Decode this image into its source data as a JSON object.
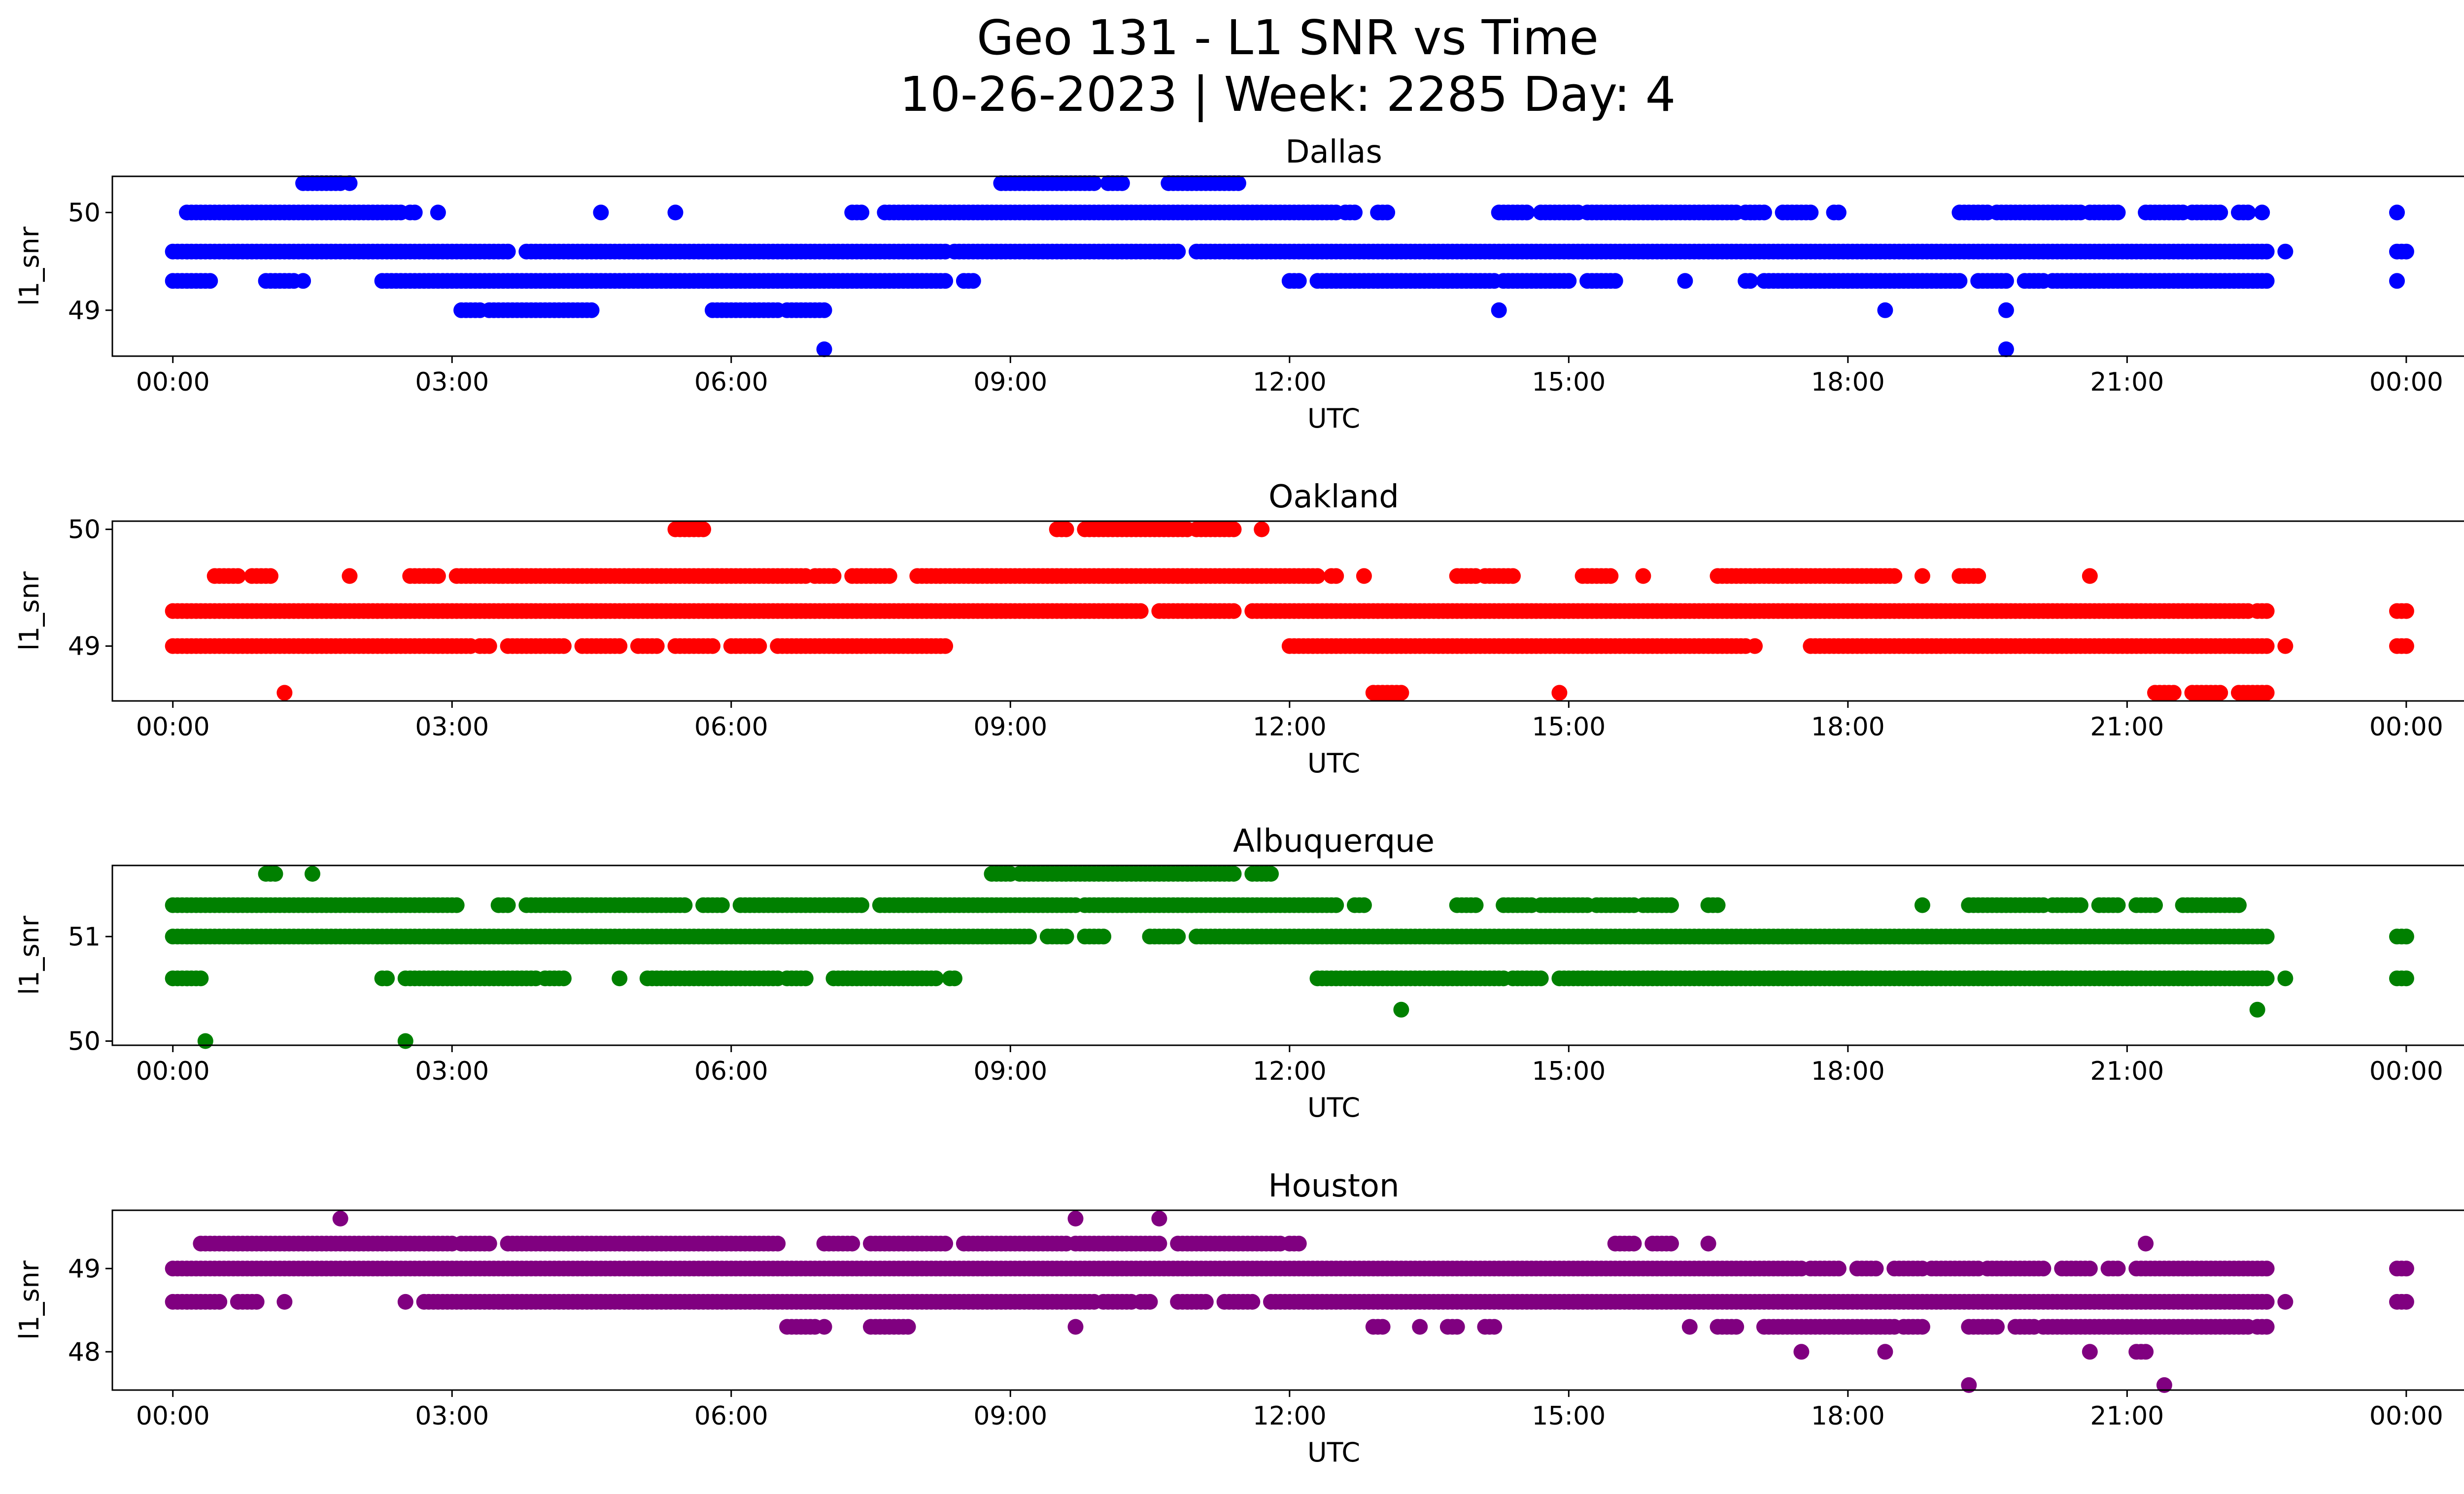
{
  "figure": {
    "title_line1": "Geo 131 - L1 SNR vs Time",
    "title_line2": "10-26-2023 | Week: 2285 Day: 4"
  },
  "chart_data": [
    {
      "type": "scatter",
      "title": "Dallas",
      "xlabel": "UTC",
      "ylabel": "l1_snr",
      "color": "#0000ff",
      "xlim": [
        -0.65,
        25.6
      ],
      "ylim": [
        48.53,
        50.37
      ],
      "xticks": [
        0,
        3,
        6,
        9,
        12,
        15,
        18,
        21,
        24
      ],
      "xtick_labels": [
        "00:00",
        "03:00",
        "06:00",
        "09:00",
        "12:00",
        "15:00",
        "18:00",
        "21:00",
        "00:00"
      ],
      "yticks": [
        49,
        50
      ],
      "series": [
        {
          "y": 50.3,
          "runs": [
            [
              1.4,
              1.8
            ],
            [
              1.9,
              1.9
            ],
            [
              8.9,
              9.9
            ],
            [
              10.05,
              10.2
            ],
            [
              10.7,
              11.45
            ]
          ]
        },
        {
          "y": 50.0,
          "runs": [
            [
              0.15,
              2.45
            ],
            [
              2.55,
              2.6
            ],
            [
              2.85,
              2.85
            ],
            [
              4.6,
              4.6
            ],
            [
              5.4,
              5.4
            ],
            [
              7.3,
              7.4
            ],
            [
              7.65,
              12.5
            ],
            [
              12.6,
              12.7
            ],
            [
              12.95,
              13.05
            ],
            [
              14.25,
              14.55
            ],
            [
              14.7,
              15.1
            ],
            [
              15.2,
              16.8
            ],
            [
              16.9,
              17.1
            ],
            [
              17.3,
              17.6
            ],
            [
              17.85,
              17.9
            ],
            [
              19.2,
              19.5
            ],
            [
              19.6,
              20.5
            ],
            [
              20.6,
              20.9
            ],
            [
              21.2,
              21.6
            ],
            [
              21.7,
              22.0
            ],
            [
              22.2,
              22.3
            ],
            [
              22.45,
              22.45
            ],
            [
              23.9,
              23.9
            ]
          ]
        },
        {
          "y": 49.6,
          "runs": [
            [
              0.0,
              3.6
            ],
            [
              3.8,
              8.3
            ],
            [
              8.4,
              10.8
            ],
            [
              11.0,
              22.5
            ],
            [
              22.7,
              22.7
            ],
            [
              23.9,
              24.0
            ]
          ]
        },
        {
          "y": 49.3,
          "runs": [
            [
              0.0,
              0.4
            ],
            [
              1.0,
              1.3
            ],
            [
              1.4,
              1.4
            ],
            [
              2.25,
              8.3
            ],
            [
              8.5,
              8.6
            ],
            [
              12.0,
              12.1
            ],
            [
              12.3,
              14.2
            ],
            [
              14.3,
              15.0
            ],
            [
              15.2,
              15.5
            ],
            [
              16.25,
              16.25
            ],
            [
              16.9,
              16.95
            ],
            [
              17.1,
              19.2
            ],
            [
              19.4,
              19.7
            ],
            [
              19.9,
              20.1
            ],
            [
              20.2,
              22.5
            ],
            [
              23.9,
              23.9
            ]
          ]
        },
        {
          "y": 49.0,
          "runs": [
            [
              3.1,
              3.3
            ],
            [
              3.4,
              4.5
            ],
            [
              5.8,
              6.5
            ],
            [
              6.6,
              7.0
            ],
            [
              14.25,
              14.25
            ],
            [
              18.4,
              18.4
            ],
            [
              19.7,
              19.7
            ]
          ]
        },
        {
          "y": 48.6,
          "runs": [
            [
              7.0,
              7.0
            ],
            [
              19.7,
              19.7
            ]
          ]
        }
      ]
    },
    {
      "type": "scatter",
      "title": "Oakland",
      "xlabel": "UTC",
      "ylabel": "l1_snr",
      "color": "#ff0000",
      "xlim": [
        -0.65,
        25.6
      ],
      "ylim": [
        48.53,
        50.07
      ],
      "xticks": [
        0,
        3,
        6,
        9,
        12,
        15,
        18,
        21,
        24
      ],
      "xtick_labels": [
        "00:00",
        "03:00",
        "06:00",
        "09:00",
        "12:00",
        "15:00",
        "18:00",
        "21:00",
        "00:00"
      ],
      "yticks": [
        49,
        50
      ],
      "series": [
        {
          "y": 50.0,
          "runs": [
            [
              5.4,
              5.7
            ],
            [
              9.5,
              9.6
            ],
            [
              9.8,
              10.9
            ],
            [
              11.0,
              11.4
            ],
            [
              11.7,
              11.7
            ]
          ]
        },
        {
          "y": 49.6,
          "runs": [
            [
              0.45,
              0.7
            ],
            [
              0.85,
              1.05
            ],
            [
              1.9,
              1.9
            ],
            [
              2.55,
              2.85
            ],
            [
              3.05,
              6.8
            ],
            [
              6.9,
              7.1
            ],
            [
              7.3,
              7.7
            ],
            [
              8.0,
              12.3
            ],
            [
              12.45,
              12.5
            ],
            [
              12.8,
              12.8
            ],
            [
              13.8,
              14.0
            ],
            [
              14.1,
              14.4
            ],
            [
              15.15,
              15.45
            ],
            [
              15.8,
              15.8
            ],
            [
              16.6,
              17.75
            ],
            [
              17.8,
              18.5
            ],
            [
              18.8,
              18.8
            ],
            [
              19.2,
              19.4
            ],
            [
              20.6,
              20.6
            ]
          ]
        },
        {
          "y": 49.3,
          "runs": [
            [
              0.0,
              10.4
            ],
            [
              10.6,
              11.4
            ],
            [
              11.6,
              22.3
            ],
            [
              22.4,
              22.5
            ],
            [
              23.9,
              24.0
            ]
          ]
        },
        {
          "y": 49.0,
          "runs": [
            [
              0.0,
              3.2
            ],
            [
              3.3,
              3.4
            ],
            [
              3.6,
              4.2
            ],
            [
              4.4,
              4.8
            ],
            [
              5.0,
              5.2
            ],
            [
              5.4,
              5.8
            ],
            [
              6.0,
              6.3
            ],
            [
              6.5,
              8.3
            ],
            [
              12.0,
              16.9
            ],
            [
              17.0,
              17.0
            ],
            [
              17.6,
              22.5
            ],
            [
              22.7,
              22.7
            ],
            [
              23.9,
              24.0
            ]
          ]
        },
        {
          "y": 48.6,
          "runs": [
            [
              1.2,
              1.2
            ],
            [
              12.9,
              13.2
            ],
            [
              14.9,
              14.9
            ],
            [
              21.3,
              21.5
            ],
            [
              21.7,
              22.0
            ],
            [
              22.2,
              22.5
            ]
          ]
        }
      ]
    },
    {
      "type": "scatter",
      "title": "Albuquerque",
      "xlabel": "UTC",
      "ylabel": "l1_snr",
      "color": "#008000",
      "xlim": [
        -0.65,
        25.6
      ],
      "ylim": [
        49.96,
        51.68
      ],
      "xticks": [
        0,
        3,
        6,
        9,
        12,
        15,
        18,
        21,
        24
      ],
      "xtick_labels": [
        "00:00",
        "03:00",
        "06:00",
        "09:00",
        "12:00",
        "15:00",
        "18:00",
        "21:00",
        "00:00"
      ],
      "yticks": [
        50,
        51
      ],
      "series": [
        {
          "y": 51.6,
          "runs": [
            [
              1.0,
              1.1
            ],
            [
              1.5,
              1.5
            ],
            [
              8.8,
              9.0
            ],
            [
              9.1,
              11.4
            ],
            [
              11.6,
              11.8
            ]
          ]
        },
        {
          "y": 51.3,
          "runs": [
            [
              0.0,
              3.05
            ],
            [
              3.5,
              3.6
            ],
            [
              3.8,
              5.5
            ],
            [
              5.7,
              5.9
            ],
            [
              6.1,
              7.4
            ],
            [
              7.6,
              9.7
            ],
            [
              9.8,
              12.5
            ],
            [
              12.7,
              12.8
            ],
            [
              13.8,
              14.0
            ],
            [
              14.3,
              14.6
            ],
            [
              14.7,
              15.2
            ],
            [
              15.3,
              15.7
            ],
            [
              15.8,
              16.1
            ],
            [
              16.5,
              16.6
            ],
            [
              18.8,
              18.8
            ],
            [
              19.3,
              20.1
            ],
            [
              20.2,
              20.5
            ],
            [
              20.7,
              20.9
            ],
            [
              21.1,
              21.3
            ],
            [
              21.6,
              22.2
            ]
          ]
        },
        {
          "y": 51.0,
          "runs": [
            [
              0.0,
              9.2
            ],
            [
              9.4,
              9.6
            ],
            [
              9.8,
              10.0
            ],
            [
              10.5,
              10.8
            ],
            [
              11.0,
              22.5
            ],
            [
              23.9,
              24.0
            ]
          ]
        },
        {
          "y": 50.6,
          "runs": [
            [
              0.0,
              0.3
            ],
            [
              2.25,
              2.3
            ],
            [
              2.5,
              3.9
            ],
            [
              4.0,
              4.2
            ],
            [
              4.8,
              4.8
            ],
            [
              5.1,
              6.5
            ],
            [
              6.6,
              6.8
            ],
            [
              7.1,
              8.2
            ],
            [
              8.35,
              8.4
            ],
            [
              12.3,
              14.3
            ],
            [
              14.4,
              14.7
            ],
            [
              14.9,
              22.5
            ],
            [
              22.7,
              22.7
            ],
            [
              23.9,
              24.0
            ]
          ]
        },
        {
          "y": 50.3,
          "runs": [
            [
              13.2,
              13.2
            ],
            [
              22.4,
              22.4
            ]
          ]
        },
        {
          "y": 50.0,
          "runs": [
            [
              0.35,
              0.35
            ],
            [
              2.5,
              2.5
            ]
          ]
        }
      ]
    },
    {
      "type": "scatter",
      "title": "Houston",
      "xlabel": "UTC",
      "ylabel": "l1_snr",
      "color": "#800080",
      "xlim": [
        -0.65,
        25.6
      ],
      "ylim": [
        47.54,
        49.7
      ],
      "xticks": [
        0,
        3,
        6,
        9,
        12,
        15,
        18,
        21,
        24
      ],
      "xtick_labels": [
        "00:00",
        "03:00",
        "06:00",
        "09:00",
        "12:00",
        "15:00",
        "18:00",
        "21:00",
        "00:00"
      ],
      "yticks": [
        48,
        49
      ],
      "series": [
        {
          "y": 49.6,
          "runs": [
            [
              1.8,
              1.8
            ],
            [
              9.7,
              9.7
            ],
            [
              10.6,
              10.6
            ]
          ]
        },
        {
          "y": 49.3,
          "runs": [
            [
              0.3,
              3.0
            ],
            [
              3.1,
              3.4
            ],
            [
              3.6,
              6.5
            ],
            [
              7.0,
              7.3
            ],
            [
              7.5,
              8.3
            ],
            [
              8.5,
              9.6
            ],
            [
              9.7,
              10.6
            ],
            [
              10.8,
              11.9
            ],
            [
              12.0,
              12.1
            ],
            [
              15.5,
              15.7
            ],
            [
              15.9,
              16.1
            ],
            [
              16.5,
              16.5
            ],
            [
              21.2,
              21.2
            ]
          ]
        },
        {
          "y": 49.0,
          "runs": [
            [
              0.0,
              17.5
            ],
            [
              17.6,
              17.9
            ],
            [
              18.1,
              18.3
            ],
            [
              18.5,
              18.8
            ],
            [
              18.9,
              19.4
            ],
            [
              19.5,
              20.1
            ],
            [
              20.3,
              20.6
            ],
            [
              20.8,
              20.9
            ],
            [
              21.1,
              22.5
            ],
            [
              23.9,
              24.0
            ]
          ]
        },
        {
          "y": 48.6,
          "runs": [
            [
              0.0,
              0.5
            ],
            [
              0.7,
              0.9
            ],
            [
              1.2,
              1.2
            ],
            [
              2.5,
              2.5
            ],
            [
              2.7,
              9.9
            ],
            [
              10.0,
              10.3
            ],
            [
              10.4,
              10.5
            ],
            [
              10.8,
              11.1
            ],
            [
              11.3,
              11.6
            ],
            [
              11.8,
              22.5
            ],
            [
              22.7,
              22.7
            ],
            [
              23.9,
              24.0
            ]
          ]
        },
        {
          "y": 48.3,
          "runs": [
            [
              6.6,
              6.9
            ],
            [
              7.0,
              7.0
            ],
            [
              7.5,
              7.9
            ],
            [
              9.7,
              9.7
            ],
            [
              12.9,
              13.0
            ],
            [
              13.4,
              13.4
            ],
            [
              13.7,
              13.8
            ],
            [
              14.1,
              14.2
            ],
            [
              16.3,
              16.3
            ],
            [
              16.6,
              16.8
            ],
            [
              17.1,
              18.5
            ],
            [
              18.6,
              18.8
            ],
            [
              19.3,
              19.6
            ],
            [
              19.8,
              20.0
            ],
            [
              20.1,
              22.3
            ],
            [
              22.4,
              22.5
            ]
          ]
        },
        {
          "y": 48.0,
          "runs": [
            [
              17.5,
              17.5
            ],
            [
              18.4,
              18.4
            ],
            [
              20.6,
              20.6
            ],
            [
              21.1,
              21.2
            ]
          ]
        },
        {
          "y": 47.6,
          "runs": [
            [
              19.3,
              19.3
            ],
            [
              21.4,
              21.4
            ]
          ]
        }
      ]
    }
  ]
}
